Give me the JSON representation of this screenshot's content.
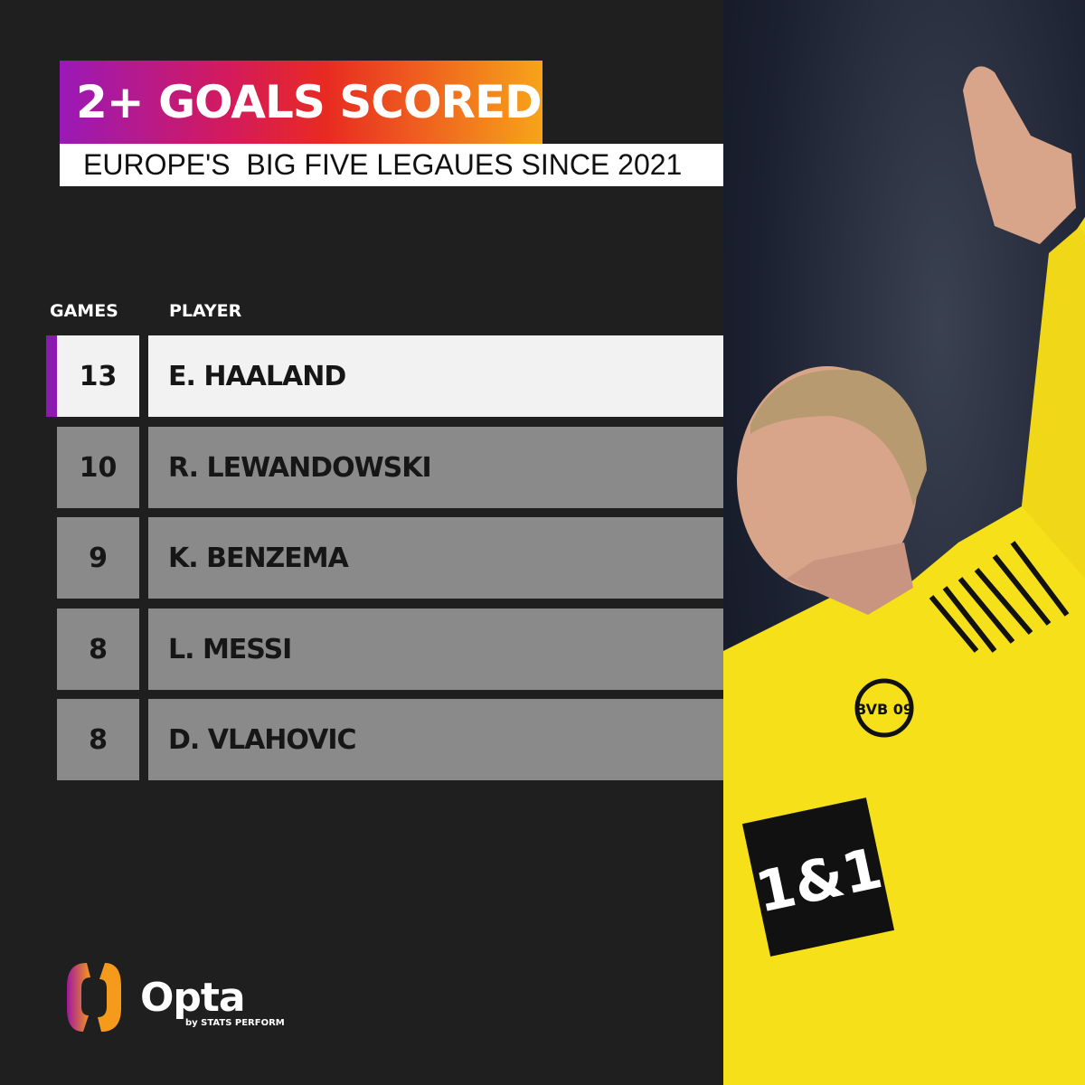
{
  "title": "2+ GOALS SCORED",
  "subtitle": "EUROPE'S  BIG FIVE LEGAUES SINCE 2021",
  "columns": {
    "games": "GAMES",
    "player": "PLAYER"
  },
  "rows": [
    {
      "games": "13",
      "player": "E. HAALAND"
    },
    {
      "games": "10",
      "player": "R. LEWANDOWSKI"
    },
    {
      "games": "9",
      "player": "K. BENZEMA"
    },
    {
      "games": "8",
      "player": "L. MESSI"
    },
    {
      "games": "8",
      "player": "D. VLAHOVIC"
    }
  ],
  "logo": {
    "name": "Opta",
    "tagline": "by STATS PERFORM"
  },
  "photo": {
    "shirt_sponsor": "1&1",
    "crest": "BVB 09"
  },
  "colors": {
    "background": "#1f1f1f",
    "highlight_accent": "#8a1ab0",
    "row": "#8a8a8a",
    "highlight_row": "#f2f2f2",
    "shirt": "#f5e01a"
  }
}
